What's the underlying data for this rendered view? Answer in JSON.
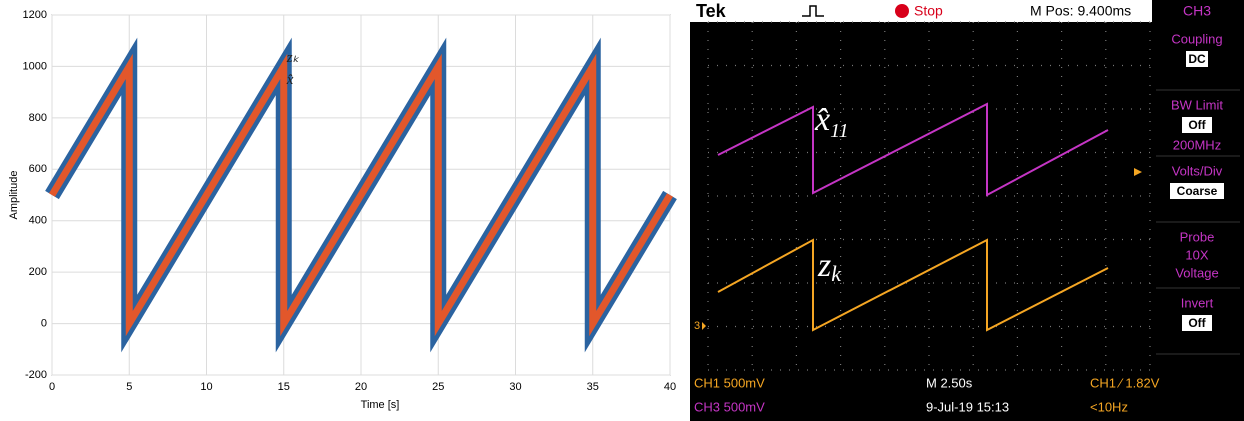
{
  "chart_data": {
    "type": "line",
    "x": [
      0,
      5,
      5,
      15,
      15,
      25,
      25,
      35,
      35,
      40
    ],
    "series": [
      {
        "name": "zₖ",
        "color": "#2b63a0",
        "values": [
          500,
          1000,
          0,
          1000,
          0,
          1000,
          0,
          1000,
          0,
          500
        ]
      },
      {
        "name": "x̂",
        "color": "#e2572b",
        "values": [
          500,
          1000,
          0,
          1000,
          0,
          1000,
          0,
          1000,
          0,
          500
        ]
      }
    ],
    "xlabel": "Time [s]",
    "ylabel": "Amplitude",
    "xlim": [
      0,
      40
    ],
    "xticks": [
      0,
      5,
      10,
      15,
      20,
      25,
      30,
      35,
      40
    ],
    "ylim": [
      -200,
      1200
    ],
    "yticks": [
      -200,
      0,
      200,
      400,
      600,
      800,
      1000,
      1200
    ],
    "grid": true
  },
  "scope": {
    "top": {
      "brand": "Tek",
      "state": "Stop",
      "position": "M Pos: 9.400ms"
    },
    "menu": {
      "channel": "CH3",
      "items": [
        {
          "label": "Coupling",
          "value": "DC"
        },
        {
          "label": "BW Limit",
          "value": "Off",
          "extra": "200MHz"
        },
        {
          "label": "Volts/Div",
          "value": "Coarse"
        },
        {
          "label": "Probe",
          "lines": [
            "10X",
            "Voltage"
          ]
        },
        {
          "label": "Invert",
          "value": "Off"
        }
      ]
    },
    "traces": {
      "upper": {
        "base": "x̂",
        "sub": "11"
      },
      "lower": {
        "base": "z",
        "sub": "k"
      },
      "marker": "3"
    },
    "bottom": {
      "ch1": "CH1  500mV",
      "ch3": "CH3  500mV",
      "timebase": "M 2.50s",
      "date": "9-Jul-19 15:13",
      "trigger": "CH1 ⁄ 1.82V",
      "freq": "<10Hz"
    }
  }
}
